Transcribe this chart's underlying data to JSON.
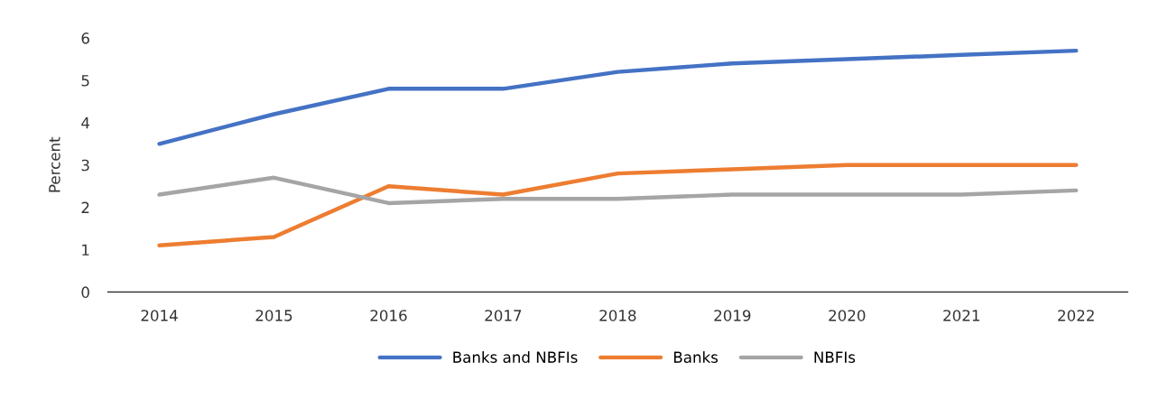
{
  "chart_data": {
    "type": "line",
    "ylabel": "Percent",
    "categories": [
      "2014",
      "2015",
      "2016",
      "2017",
      "2018",
      "2019",
      "2020",
      "2021",
      "2022"
    ],
    "series": [
      {
        "name": "Banks and NBFIs",
        "color": "#4472c4",
        "values": [
          3.5,
          4.2,
          4.8,
          4.8,
          5.2,
          5.4,
          5.5,
          5.6,
          5.7
        ]
      },
      {
        "name": "Banks",
        "color": "#ed7d31",
        "values": [
          1.1,
          1.3,
          2.5,
          2.3,
          2.8,
          2.9,
          3.0,
          3.0,
          3.0
        ]
      },
      {
        "name": "NBFIs",
        "color": "#a5a5a5",
        "values": [
          2.3,
          2.7,
          2.1,
          2.2,
          2.2,
          2.3,
          2.3,
          2.3,
          2.4
        ]
      }
    ],
    "ylim": [
      0,
      6
    ],
    "yticks": [
      0,
      1,
      2,
      3,
      4,
      5,
      6
    ],
    "grid": false,
    "legend": "bottom",
    "marker": "none",
    "line_style": "solid"
  }
}
